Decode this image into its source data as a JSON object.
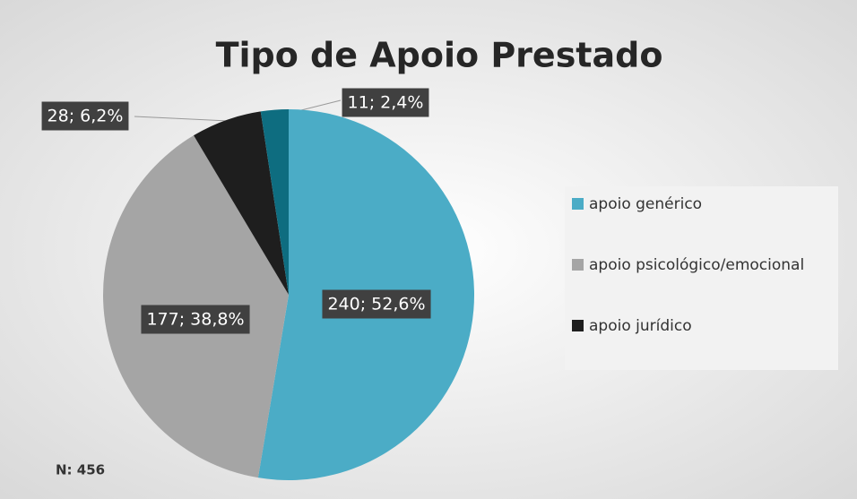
{
  "chart_data": {
    "type": "pie",
    "title": "Tipo de Apoio Prestado",
    "categories": [
      "apoio genérico",
      "apoio psicológico/emocional",
      "apoio jurídico",
      null
    ],
    "values": [
      240,
      177,
      28,
      11
    ],
    "value_labels": [
      "240; 52,6%",
      "177; 38,8%",
      "28; 6,2%",
      "11; 2,4%"
    ],
    "colors": [
      "#4bacc6",
      "#a5a5a5",
      "#1e1e1e",
      "#0e6d80"
    ],
    "annotation": "N: 456"
  }
}
